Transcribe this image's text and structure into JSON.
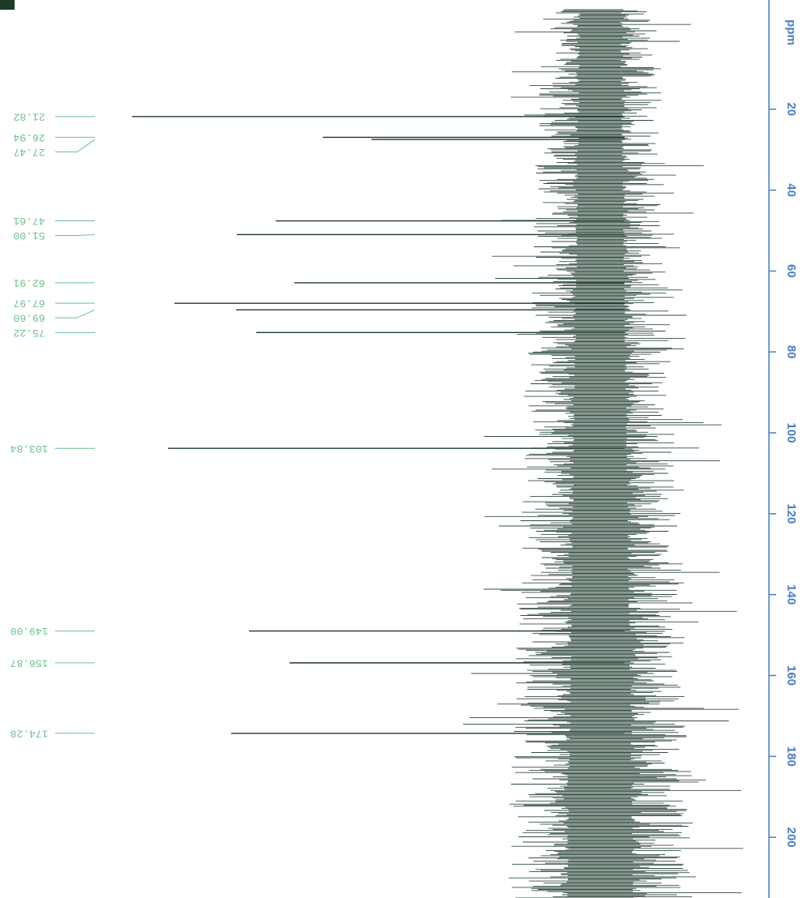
{
  "chart_data": {
    "type": "spectrum",
    "axis_label": "ppm",
    "ylim": [
      -7,
      215
    ],
    "yticks": [
      20,
      40,
      60,
      80,
      100,
      120,
      140,
      160,
      180,
      200
    ],
    "series": [
      {
        "color": "#1f3a2e",
        "peaks": [
          21.82,
          26.94,
          27.47,
          47.61,
          51.0,
          62.91,
          67.97,
          69.6,
          75.22,
          103.84,
          149.0,
          156.87,
          174.28
        ],
        "peak_labels": [
          "21.82",
          "26.94",
          "27.47",
          "47.61",
          "51.00",
          "62.91",
          "67.97",
          "69.60",
          "75.22",
          "103.84",
          "149.00",
          "156.87",
          "174.28"
        ],
        "intensities": [
          577,
          342,
          282,
          400,
          448,
          377,
          525,
          449,
          424,
          533,
          433,
          383,
          455
        ]
      }
    ],
    "label_color": "#6dbf8c",
    "axis_color": "#4a7fc1"
  }
}
